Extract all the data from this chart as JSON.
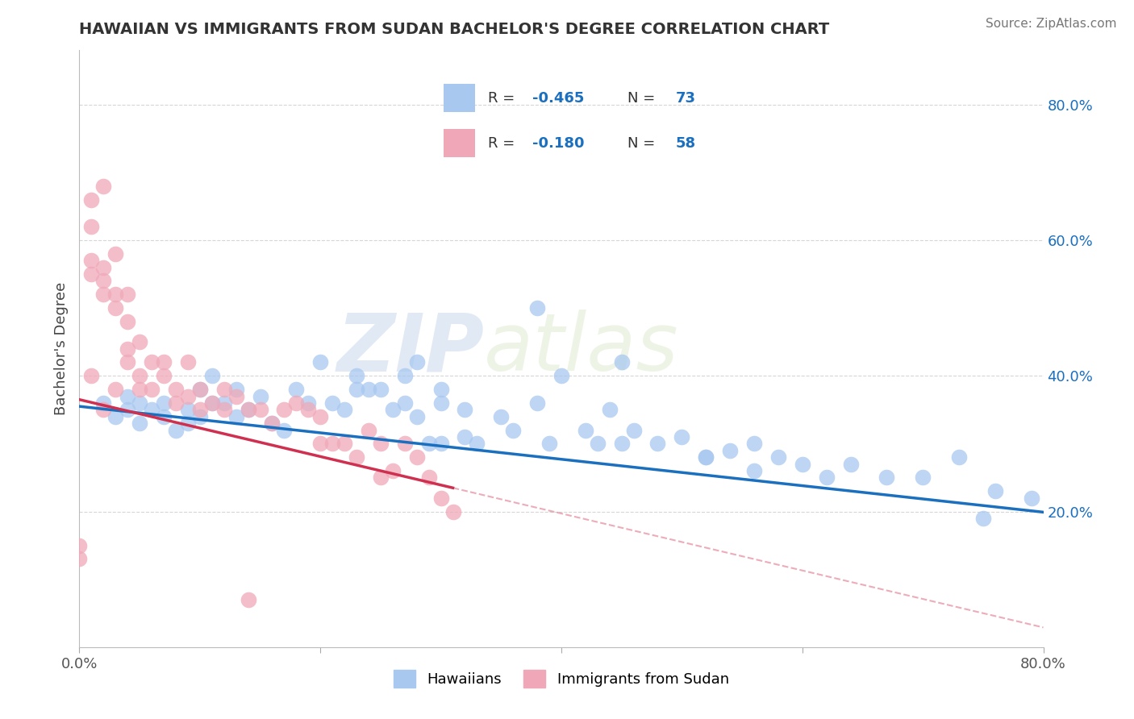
{
  "title": "HAWAIIAN VS IMMIGRANTS FROM SUDAN BACHELOR'S DEGREE CORRELATION CHART",
  "source": "Source: ZipAtlas.com",
  "ylabel": "Bachelor's Degree",
  "watermark_zip": "ZIP",
  "watermark_atlas": "atlas",
  "blue_color": "#A8C8F0",
  "pink_color": "#F0A8B8",
  "blue_line_color": "#1A6FBF",
  "pink_line_color": "#D03050",
  "grid_color": "#CCCCCC",
  "background_color": "#FFFFFF",
  "xmin": 0.0,
  "xmax": 0.8,
  "ymin": 0.0,
  "ymax": 0.88,
  "blue_intercept": 0.355,
  "blue_slope": -0.195,
  "pink_intercept": 0.365,
  "pink_slope": -0.42,
  "hawaiians_x": [
    0.02,
    0.03,
    0.04,
    0.04,
    0.05,
    0.05,
    0.06,
    0.07,
    0.07,
    0.08,
    0.09,
    0.09,
    0.1,
    0.1,
    0.11,
    0.11,
    0.12,
    0.13,
    0.13,
    0.14,
    0.15,
    0.16,
    0.17,
    0.18,
    0.19,
    0.2,
    0.21,
    0.22,
    0.23,
    0.24,
    0.25,
    0.26,
    0.27,
    0.28,
    0.29,
    0.3,
    0.3,
    0.32,
    0.33,
    0.35,
    0.36,
    0.38,
    0.39,
    0.4,
    0.42,
    0.43,
    0.44,
    0.46,
    0.48,
    0.5,
    0.52,
    0.54,
    0.56,
    0.58,
    0.6,
    0.62,
    0.64,
    0.67,
    0.7,
    0.73,
    0.76,
    0.79,
    0.38,
    0.45,
    0.3,
    0.28,
    0.32,
    0.27,
    0.23,
    0.45,
    0.52,
    0.56,
    0.75
  ],
  "hawaiians_y": [
    0.36,
    0.34,
    0.35,
    0.37,
    0.33,
    0.36,
    0.35,
    0.34,
    0.36,
    0.32,
    0.35,
    0.33,
    0.38,
    0.34,
    0.36,
    0.4,
    0.36,
    0.34,
    0.38,
    0.35,
    0.37,
    0.33,
    0.32,
    0.38,
    0.36,
    0.42,
    0.36,
    0.35,
    0.4,
    0.38,
    0.38,
    0.35,
    0.36,
    0.34,
    0.3,
    0.3,
    0.36,
    0.31,
    0.3,
    0.34,
    0.32,
    0.36,
    0.3,
    0.4,
    0.32,
    0.3,
    0.35,
    0.32,
    0.3,
    0.31,
    0.28,
    0.29,
    0.3,
    0.28,
    0.27,
    0.25,
    0.27,
    0.25,
    0.25,
    0.28,
    0.23,
    0.22,
    0.5,
    0.42,
    0.38,
    0.42,
    0.35,
    0.4,
    0.38,
    0.3,
    0.28,
    0.26,
    0.19
  ],
  "sudan_x": [
    0.0,
    0.0,
    0.01,
    0.01,
    0.01,
    0.02,
    0.02,
    0.02,
    0.03,
    0.03,
    0.03,
    0.04,
    0.04,
    0.04,
    0.05,
    0.05,
    0.05,
    0.06,
    0.06,
    0.07,
    0.07,
    0.08,
    0.08,
    0.09,
    0.09,
    0.1,
    0.1,
    0.11,
    0.12,
    0.12,
    0.13,
    0.14,
    0.14,
    0.15,
    0.16,
    0.17,
    0.18,
    0.19,
    0.2,
    0.2,
    0.21,
    0.22,
    0.23,
    0.24,
    0.25,
    0.25,
    0.26,
    0.27,
    0.28,
    0.29,
    0.3,
    0.31,
    0.01,
    0.01,
    0.02,
    0.02,
    0.03,
    0.04
  ],
  "sudan_y": [
    0.13,
    0.15,
    0.55,
    0.57,
    0.4,
    0.54,
    0.52,
    0.35,
    0.5,
    0.52,
    0.38,
    0.48,
    0.42,
    0.44,
    0.45,
    0.4,
    0.38,
    0.42,
    0.38,
    0.4,
    0.42,
    0.38,
    0.36,
    0.42,
    0.37,
    0.38,
    0.35,
    0.36,
    0.35,
    0.38,
    0.37,
    0.35,
    0.07,
    0.35,
    0.33,
    0.35,
    0.36,
    0.35,
    0.34,
    0.3,
    0.3,
    0.3,
    0.28,
    0.32,
    0.25,
    0.3,
    0.26,
    0.3,
    0.28,
    0.25,
    0.22,
    0.2,
    0.62,
    0.66,
    0.68,
    0.56,
    0.58,
    0.52
  ]
}
